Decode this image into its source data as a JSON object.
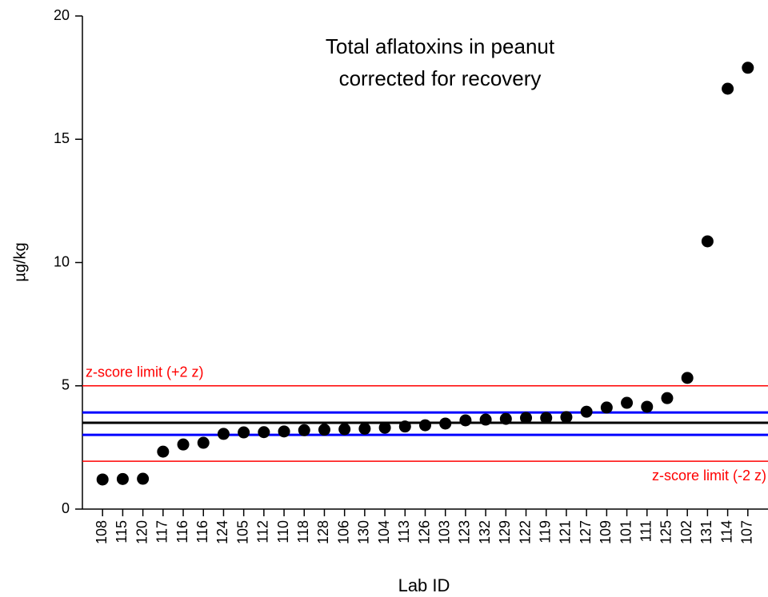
{
  "chart_data": {
    "type": "scatter",
    "title": [
      "Total aflatoxins in peanut",
      "corrected for recovery"
    ],
    "x_label": "Lab ID",
    "y_label": "µg/kg",
    "categories": [
      "108",
      "115",
      "120",
      "117",
      "116",
      "116",
      "124",
      "105",
      "112",
      "110",
      "118",
      "128",
      "106",
      "130",
      "104",
      "113",
      "126",
      "103",
      "123",
      "132",
      "129",
      "122",
      "119",
      "121",
      "127",
      "109",
      "101",
      "111",
      "125",
      "102",
      "131",
      "114",
      "107"
    ],
    "values": [
      1.2,
      1.22,
      1.23,
      2.33,
      2.62,
      2.69,
      3.05,
      3.11,
      3.12,
      3.15,
      3.2,
      3.22,
      3.24,
      3.26,
      3.3,
      3.35,
      3.4,
      3.47,
      3.6,
      3.63,
      3.66,
      3.7,
      3.7,
      3.73,
      3.95,
      4.12,
      4.31,
      4.15,
      4.5,
      5.32,
      10.86,
      17.05,
      17.9
    ],
    "color": "#000000",
    "ylim": [
      0,
      20
    ],
    "yticks": [
      0,
      5,
      10,
      15,
      20
    ],
    "reference_lines": [
      {
        "value": 5,
        "color": "#ff0000",
        "label": "z-score limit (+2 z)"
      },
      {
        "value": 3.92,
        "color": "#0000ff"
      },
      {
        "value": 3.5,
        "color": "#000000"
      },
      {
        "value": 3.01,
        "color": "#0000ff"
      },
      {
        "value": 1.94,
        "color": "#ff0000",
        "label": "z-score limit (-2 z)"
      }
    ]
  }
}
